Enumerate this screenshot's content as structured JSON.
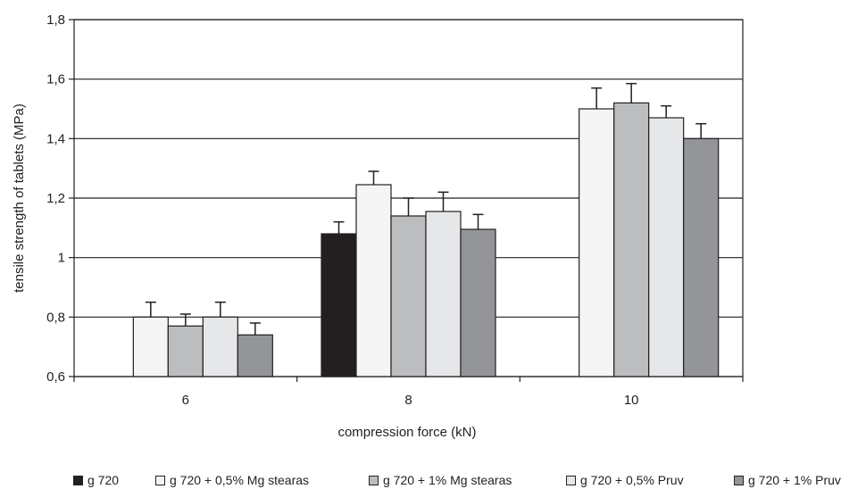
{
  "chart_data": {
    "type": "bar",
    "title": "",
    "xlabel": "compression force (kN)",
    "ylabel": "tensile strength of tablets (MPa)",
    "categories": [
      "6",
      "8",
      "10"
    ],
    "ylim": [
      0.6,
      1.8
    ],
    "yticks": [
      "0,6",
      "0,8",
      "1",
      "1,2",
      "1,4",
      "1,6",
      "1,8"
    ],
    "grid": true,
    "legend_position": "bottom",
    "series": [
      {
        "name": "g 720",
        "color": "#231f20",
        "values": [
          null,
          1.08,
          null
        ],
        "errors": [
          null,
          0.04,
          null
        ]
      },
      {
        "name": "g 720 + 0,5% Mg stearas",
        "color": "#f5f5f5",
        "values": [
          0.8,
          1.245,
          1.5
        ],
        "errors": [
          0.05,
          0.045,
          0.07
        ]
      },
      {
        "name": "g 720 + 1% Mg stearas",
        "color": "#bcbdbf",
        "values": [
          0.77,
          1.14,
          1.52
        ],
        "errors": [
          0.04,
          0.06,
          0.065
        ]
      },
      {
        "name": "g 720 + 0,5% Pruv",
        "color": "#e6e7e8",
        "values": [
          0.8,
          1.155,
          1.47
        ],
        "errors": [
          0.05,
          0.065,
          0.04
        ]
      },
      {
        "name": "g 720 + 1% Pruv",
        "color": "#939598",
        "values": [
          0.74,
          1.095,
          1.4
        ],
        "errors": [
          0.04,
          0.05,
          0.05
        ]
      }
    ]
  }
}
